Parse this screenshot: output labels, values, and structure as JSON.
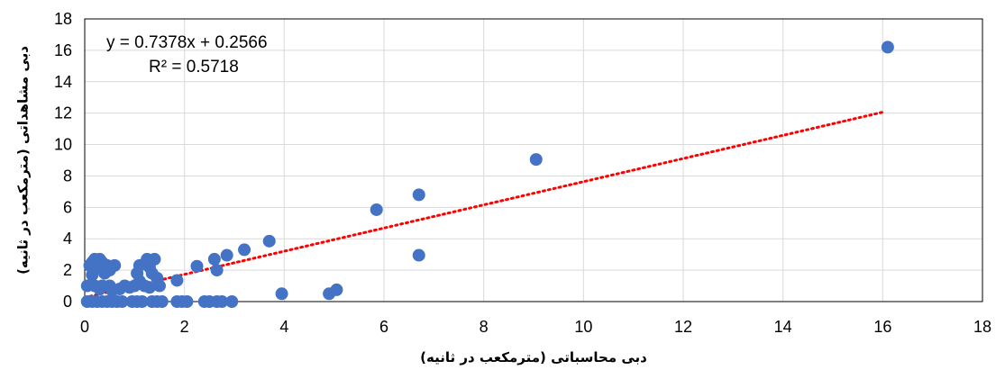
{
  "chart_data": {
    "type": "scatter",
    "xlabel": "دبی محاسباتی (مترمکعب در ثانیه)",
    "ylabel": "دبی مشاهداتی (مترمکعب در ثانیه)",
    "xlim": [
      0,
      18
    ],
    "ylim": [
      0,
      18
    ],
    "xticks": [
      0,
      2,
      4,
      6,
      8,
      10,
      12,
      14,
      16,
      18
    ],
    "yticks": [
      0,
      2,
      4,
      6,
      8,
      10,
      12,
      14,
      16,
      18
    ],
    "grid": true,
    "marker_color": "#4472C4",
    "trendline": {
      "slope": 0.7378,
      "intercept": 0.2566,
      "x_range": [
        0,
        16
      ],
      "color": "#FF0000",
      "style": "dotted",
      "equation_label": "y = 0.7378x + 0.2566",
      "r2_label": "R² = 0.5718"
    },
    "points": [
      {
        "x": 16.1,
        "y": 16.2
      },
      {
        "x": 9.05,
        "y": 9.05
      },
      {
        "x": 6.7,
        "y": 6.8
      },
      {
        "x": 5.85,
        "y": 5.85
      },
      {
        "x": 6.7,
        "y": 2.95
      },
      {
        "x": 3.7,
        "y": 3.85
      },
      {
        "x": 3.2,
        "y": 3.3
      },
      {
        "x": 2.85,
        "y": 2.95
      },
      {
        "x": 2.6,
        "y": 2.7
      },
      {
        "x": 2.65,
        "y": 2.0
      },
      {
        "x": 2.25,
        "y": 2.25
      },
      {
        "x": 1.85,
        "y": 1.35
      },
      {
        "x": 3.95,
        "y": 0.5
      },
      {
        "x": 4.9,
        "y": 0.5
      },
      {
        "x": 5.05,
        "y": 0.75
      },
      {
        "x": 0.05,
        "y": 1.0
      },
      {
        "x": 0.1,
        "y": 2.3
      },
      {
        "x": 0.15,
        "y": 2.5
      },
      {
        "x": 0.2,
        "y": 2.7
      },
      {
        "x": 0.25,
        "y": 2.2
      },
      {
        "x": 0.3,
        "y": 2.7
      },
      {
        "x": 0.35,
        "y": 2.5
      },
      {
        "x": 0.4,
        "y": 1.8
      },
      {
        "x": 0.45,
        "y": 2.3
      },
      {
        "x": 0.5,
        "y": 2.0
      },
      {
        "x": 0.6,
        "y": 2.3
      },
      {
        "x": 0.15,
        "y": 1.7
      },
      {
        "x": 0.2,
        "y": 1.0
      },
      {
        "x": 0.3,
        "y": 0.8
      },
      {
        "x": 0.35,
        "y": 1.0
      },
      {
        "x": 0.5,
        "y": 1.0
      },
      {
        "x": 0.55,
        "y": 0.7
      },
      {
        "x": 0.7,
        "y": 0.8
      },
      {
        "x": 0.8,
        "y": 1.0
      },
      {
        "x": 0.9,
        "y": 0.9
      },
      {
        "x": 1.0,
        "y": 1.0
      },
      {
        "x": 1.05,
        "y": 1.8
      },
      {
        "x": 1.1,
        "y": 2.3
      },
      {
        "x": 1.2,
        "y": 2.4
      },
      {
        "x": 1.25,
        "y": 2.7
      },
      {
        "x": 1.3,
        "y": 2.2
      },
      {
        "x": 1.35,
        "y": 1.8
      },
      {
        "x": 1.4,
        "y": 2.7
      },
      {
        "x": 1.45,
        "y": 1.5
      },
      {
        "x": 1.5,
        "y": 1.0
      },
      {
        "x": 1.2,
        "y": 1.0
      },
      {
        "x": 1.3,
        "y": 0.9
      },
      {
        "x": 1.1,
        "y": 1.3
      },
      {
        "x": 0.05,
        "y": 0.0
      },
      {
        "x": 0.15,
        "y": 0.0
      },
      {
        "x": 0.25,
        "y": 0.0
      },
      {
        "x": 0.35,
        "y": 0.0
      },
      {
        "x": 0.45,
        "y": 0.0
      },
      {
        "x": 0.55,
        "y": 0.0
      },
      {
        "x": 0.65,
        "y": 0.0
      },
      {
        "x": 0.75,
        "y": 0.0
      },
      {
        "x": 0.95,
        "y": 0.0
      },
      {
        "x": 1.05,
        "y": 0.0
      },
      {
        "x": 1.15,
        "y": 0.0
      },
      {
        "x": 1.35,
        "y": 0.0
      },
      {
        "x": 1.45,
        "y": 0.0
      },
      {
        "x": 1.55,
        "y": 0.0
      },
      {
        "x": 1.85,
        "y": 0.0
      },
      {
        "x": 1.95,
        "y": 0.0
      },
      {
        "x": 2.05,
        "y": 0.0
      },
      {
        "x": 2.4,
        "y": 0.0
      },
      {
        "x": 2.5,
        "y": 0.0
      },
      {
        "x": 2.65,
        "y": 0.0
      },
      {
        "x": 2.75,
        "y": 0.0
      },
      {
        "x": 2.95,
        "y": 0.0
      }
    ]
  }
}
